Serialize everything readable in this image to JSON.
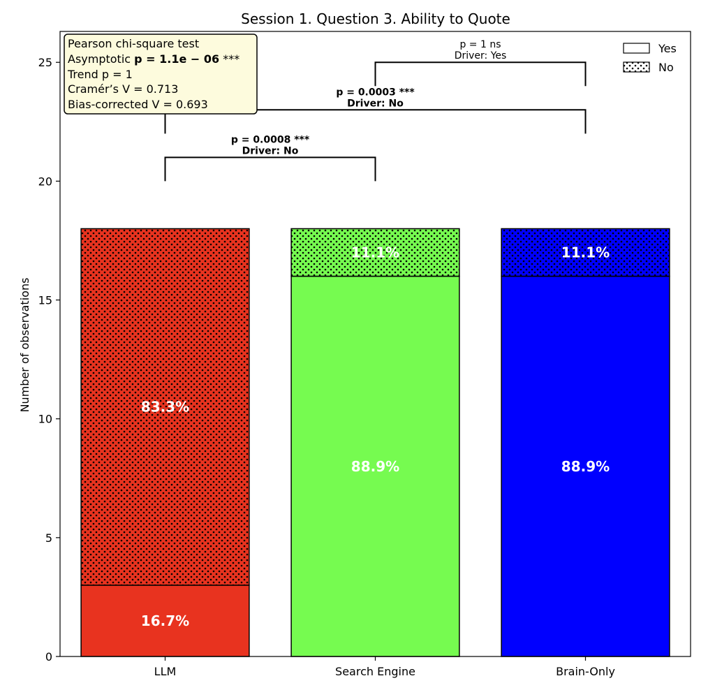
{
  "chart_data": {
    "type": "bar",
    "stacked": true,
    "title": "Session 1. Question 3. Ability to Quote",
    "xlabel": "",
    "ylabel": "Number of observations",
    "ylim": [
      0,
      26.3
    ],
    "yticks": [
      0,
      5,
      10,
      15,
      20,
      25
    ],
    "grid": false,
    "legend_position": "top-right",
    "categories": [
      "LLM",
      "Search Engine",
      "Brain-Only"
    ],
    "colors": [
      "#e8331f",
      "#76fb50",
      "#0000ff"
    ],
    "series": [
      {
        "name": "Yes",
        "values": [
          3,
          16,
          16
        ],
        "labels": [
          "16.7%",
          "88.9%",
          "88.9%"
        ],
        "pattern": "solid"
      },
      {
        "name": "No",
        "values": [
          15,
          2,
          2
        ],
        "labels": [
          "83.3%",
          "11.1%",
          "11.1%"
        ],
        "pattern": "dots"
      }
    ],
    "stats_box": {
      "line1": "Pearson chi-square test",
      "line2_prefix": "Asymptotic ",
      "line2_value": "p = 1.1e − 06",
      "line2_suffix": " ***",
      "line3": "Trend p = 1",
      "line4": "Cramér’s V = 0.713",
      "line5": "Bias-corrected V = 0.693",
      "background": "#fdfbdd"
    },
    "comparisons": [
      {
        "from": 0,
        "to": 1,
        "y": 21,
        "drop": 1,
        "line1": "p = 0.0008 ***",
        "line2": "Driver: No",
        "bold": true
      },
      {
        "from": 0,
        "to": 2,
        "y": 23,
        "drop": 1,
        "line1": "p = 0.0003 ***",
        "line2": "Driver: No",
        "bold": true
      },
      {
        "from": 1,
        "to": 2,
        "y": 25,
        "drop": 1,
        "line1": "p = 1 ns",
        "line2": "Driver: Yes",
        "bold": false
      }
    ]
  }
}
